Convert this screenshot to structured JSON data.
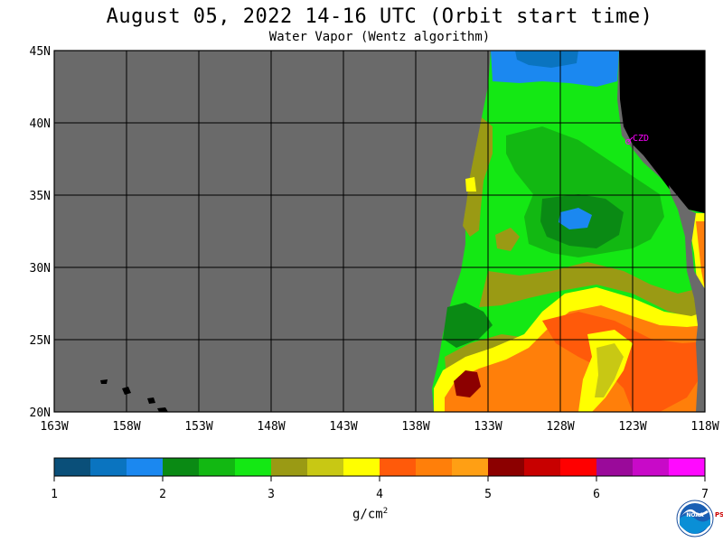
{
  "title": "August 05, 2022  14-16 UTC  (Orbit start time)",
  "subtitle": "Water Vapor (Wentz algorithm)",
  "map": {
    "lat_labels": [
      "45N",
      "40N",
      "35N",
      "30N",
      "25N",
      "20N"
    ],
    "lon_labels": [
      "163W",
      "158W",
      "153W",
      "148W",
      "143W",
      "138W",
      "133W",
      "128W",
      "123W",
      "118W"
    ],
    "lat_range": [
      20,
      45
    ],
    "lon_range": [
      -163,
      -118
    ],
    "station_label": "CZD",
    "missing_color": "#6a6a6a",
    "land_color": "#000000",
    "grid_color": "#000000"
  },
  "colorbar": {
    "colors": [
      "#0a4f79",
      "#0a74c0",
      "#1b88f0",
      "#0a8a14",
      "#12b812",
      "#14e814",
      "#9a9a14",
      "#c8c814",
      "#ffff00",
      "#ff5a0a",
      "#ff7f0a",
      "#ff9f14",
      "#8c0000",
      "#c80000",
      "#ff0000",
      "#9a0a9a",
      "#c80ac8",
      "#ff0aff"
    ],
    "tick_labels": [
      "1",
      "2",
      "3",
      "4",
      "5",
      "6",
      "7"
    ],
    "units": "g/cm",
    "units_exp": "2"
  },
  "logo": {
    "text": "NOAA",
    "side_text": "PSL"
  }
}
